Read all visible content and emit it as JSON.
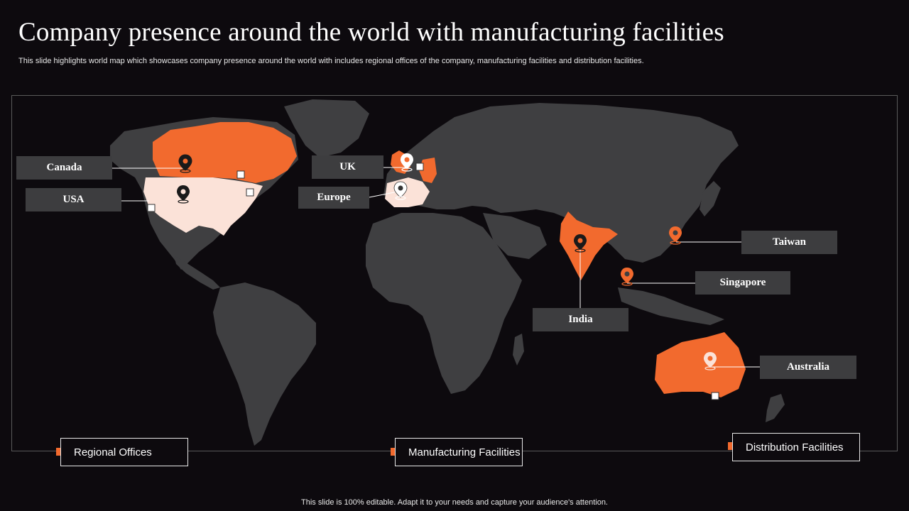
{
  "header": {
    "title": "Company presence around the world with manufacturing facilities",
    "subtitle": "This slide highlights world map which showcases company presence around the world with includes regional offices of the company, manufacturing facilities and distribution facilities."
  },
  "locations": {
    "canada": "Canada",
    "usa": "USA",
    "uk": "UK",
    "europe": "Europe",
    "india": "India",
    "taiwan": "Taiwan",
    "singapore": "Singapore",
    "australia": "Australia"
  },
  "legend": {
    "regional_offices": "Regional Offices",
    "manufacturing_facilities": "Manufacturing Facilities",
    "distribution_facilities": "Distribution Facilities"
  },
  "colors": {
    "accent": "#f26a2e",
    "pale_highlight": "#fbe2d8",
    "land": "#3f3f41",
    "background": "#0d0a0e",
    "label_bg": "#3d3d3f"
  },
  "icons": [
    "map-pin-icon",
    "square-marker-icon"
  ],
  "footer": {
    "note": "This slide is 100% editable. Adapt it to your needs and capture your audience's attention."
  }
}
